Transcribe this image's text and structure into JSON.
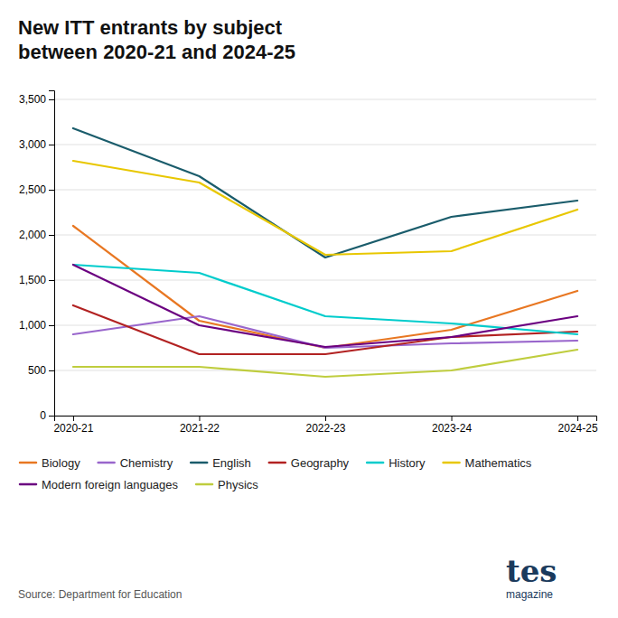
{
  "chart_data": {
    "type": "line",
    "title": "New ITT entrants by subject\nbetween 2020-21 and 2024-25",
    "categories": [
      "2020-21",
      "2021-22",
      "2022-23",
      "2023-24",
      "2024-25"
    ],
    "series": [
      {
        "name": "Biology",
        "color": "#E87722",
        "values": [
          2100,
          1050,
          750,
          950,
          1380
        ]
      },
      {
        "name": "Chemistry",
        "color": "#9966CC",
        "values": [
          900,
          1100,
          750,
          800,
          830
        ]
      },
      {
        "name": "English",
        "color": "#1A5C6B",
        "values": [
          3180,
          2650,
          1750,
          2200,
          2380
        ]
      },
      {
        "name": "Geography",
        "color": "#B22222",
        "values": [
          1220,
          680,
          680,
          870,
          930
        ]
      },
      {
        "name": "History",
        "color": "#00CCCC",
        "values": [
          1670,
          1580,
          1100,
          1020,
          900
        ]
      },
      {
        "name": "Mathematics",
        "color": "#E8C700",
        "values": [
          2820,
          2580,
          1780,
          1820,
          2280
        ]
      },
      {
        "name": "Modern foreign languages",
        "color": "#6B0080",
        "values": [
          1670,
          1000,
          760,
          870,
          1100
        ]
      },
      {
        "name": "Physics",
        "color": "#BFCD3E",
        "values": [
          540,
          540,
          430,
          500,
          730
        ]
      }
    ],
    "ylim": [
      0,
      3600
    ],
    "yticks": [
      0,
      500,
      {
        "value": 1000,
        "label": "1,000"
      },
      {
        "value": 1500,
        "label": "1,500"
      },
      {
        "value": 2000,
        "label": "2,000"
      },
      {
        "value": 2500,
        "label": "2,500"
      },
      {
        "value": 3000,
        "label": "3,000"
      },
      {
        "value": 3500,
        "label": "3,500"
      }
    ],
    "grid": true,
    "legend": "bottom",
    "annotations": [
      "Source: Department for Education",
      "tes",
      "magazine"
    ]
  }
}
